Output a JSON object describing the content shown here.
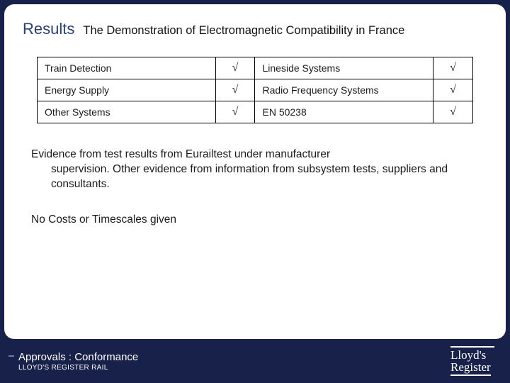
{
  "colors": {
    "page_bg": "#18214a",
    "panel_bg": "#ffffff",
    "heading": "#2a3f7a",
    "text": "#1b1b1b",
    "table_border": "#000000",
    "footer_text": "#ffffff"
  },
  "title": {
    "heading": "Results",
    "subtitle": "The Demonstration of Electromagnetic Compatibility in France"
  },
  "table": {
    "rows": [
      {
        "left_label": "Train Detection",
        "left_check": "√",
        "right_label": "Lineside Systems",
        "right_check": "√"
      },
      {
        "left_label": "Energy Supply",
        "left_check": "√",
        "right_label": "Radio Frequency Systems",
        "right_check": "√"
      },
      {
        "left_label": "Other Systems",
        "left_check": "√",
        "right_label": "EN 50238",
        "right_check": "√"
      }
    ]
  },
  "paragraph": {
    "line1": "Evidence from test results from  Eurailtest under manufacturer",
    "line2": "supervision. Other evidence from information from subsystem tests, suppliers and consultants."
  },
  "closing": "No Costs or Timescales given",
  "footer": {
    "title_a": "Approvals ",
    "title_b": ": Conformance",
    "sub": "LLOYD'S REGISTER RAIL",
    "logo_top": "Lloyd's",
    "logo_bottom": "Register"
  }
}
